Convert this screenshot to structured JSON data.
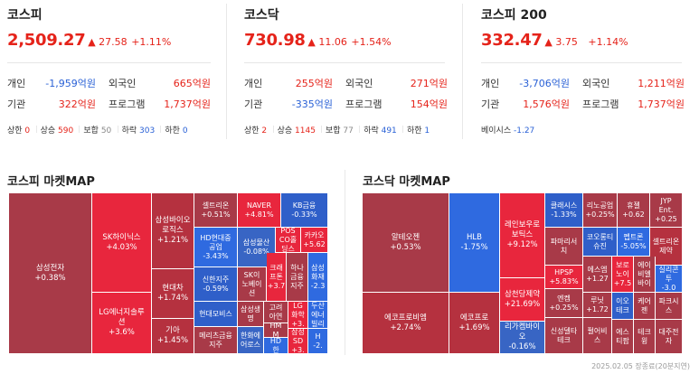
{
  "indices": [
    {
      "name": "코스피",
      "price": "2,509.27",
      "change": "▲ 27.58",
      "rate": "+1.11%",
      "investors": [
        {
          "l": "개인",
          "v": "-1,959억원",
          "c": "blue"
        },
        {
          "l": "외국인",
          "v": "665억원",
          "c": "red"
        },
        {
          "l": "기관",
          "v": "322억원",
          "c": "red"
        },
        {
          "l": "프로그램",
          "v": "1,737억원",
          "c": "red"
        }
      ],
      "stats": [
        [
          "상한",
          "0",
          "red"
        ],
        [
          "상승",
          "590",
          "red"
        ],
        [
          "보합",
          "50",
          "gray"
        ],
        [
          "하락",
          "303",
          "blue"
        ],
        [
          "하한",
          "0",
          "blue"
        ]
      ]
    },
    {
      "name": "코스닥",
      "price": "730.98",
      "change": "▲ 11.06",
      "rate": "+1.54%",
      "investors": [
        {
          "l": "개인",
          "v": "255억원",
          "c": "red"
        },
        {
          "l": "외국인",
          "v": "271억원",
          "c": "red"
        },
        {
          "l": "기관",
          "v": "-335억원",
          "c": "blue"
        },
        {
          "l": "프로그램",
          "v": "154억원",
          "c": "red"
        }
      ],
      "stats": [
        [
          "상한",
          "2",
          "red"
        ],
        [
          "상승",
          "1145",
          "red"
        ],
        [
          "보합",
          "77",
          "gray"
        ],
        [
          "하락",
          "491",
          "blue"
        ],
        [
          "하한",
          "1",
          "blue"
        ]
      ]
    },
    {
      "name": "코스피 200",
      "price": "332.47",
      "change": "▲ 3.75",
      "rate": "+1.14%",
      "investors": [
        {
          "l": "개인",
          "v": "-3,706억원",
          "c": "blue"
        },
        {
          "l": "외국인",
          "v": "1,211억원",
          "c": "red"
        },
        {
          "l": "기관",
          "v": "1,576억원",
          "c": "red"
        },
        {
          "l": "프로그램",
          "v": "1,737억원",
          "c": "red"
        }
      ],
      "basis": {
        "l": "베이시스",
        "v": "-1.27"
      }
    }
  ],
  "kospi_map": {
    "title": "코스피 마켓MAP",
    "cells": [
      {
        "n": "삼성전자",
        "r": "+0.38%",
        "c": "#a83a48",
        "b": 1
      },
      {
        "n": "SK하이닉스",
        "r": "+4.03%",
        "c": "#e8263d",
        "b": 1
      },
      {
        "n": "LG에너지솔루션",
        "r": "+3.6%",
        "c": "#e8263d",
        "b": 1
      },
      {
        "n": "삼성바이오로직스",
        "r": "+1.21%",
        "c": "#b5313f",
        "b": 1
      },
      {
        "n": "현대차",
        "r": "+1.74%",
        "c": "#b5313f",
        "b": 1
      },
      {
        "n": "기아",
        "r": "+1.45%",
        "c": "#b5313f",
        "b": 1
      },
      {
        "n": "셀트리온",
        "r": "+0.51%",
        "c": "#a83a48"
      },
      {
        "n": "NAVER",
        "r": "+4.81%",
        "c": "#e8263d"
      },
      {
        "n": "KB금융",
        "r": "-0.33%",
        "c": "#2f5fc9"
      },
      {
        "n": "HD현대중공업",
        "r": "-3.43%",
        "c": "#2f6ae0"
      },
      {
        "n": "삼성물산",
        "r": "-0.08%",
        "c": "#3865c4"
      },
      {
        "n": "POSCO홀딩스",
        "r": "",
        "c": "#e8263d"
      },
      {
        "n": "카카오",
        "r": "+5.62",
        "c": "#e8263d"
      },
      {
        "n": "신한지주",
        "r": "-0.59%",
        "c": "#2f5fc9"
      },
      {
        "n": "SK이노베이션",
        "r": "",
        "c": "#a83a48"
      },
      {
        "n": "크래프톤",
        "r": "+3.7",
        "c": "#e8263d"
      },
      {
        "n": "하나금융지주",
        "r": "",
        "c": "#a83a48"
      },
      {
        "n": "삼성화재",
        "r": "-2.3",
        "c": "#2f6ae0"
      },
      {
        "n": "현대모비스",
        "r": "",
        "c": "#2f5fc9"
      },
      {
        "n": "삼성생명",
        "r": "",
        "c": "#a83a48"
      },
      {
        "n": "고려아연",
        "r": "",
        "c": "#a83a48"
      },
      {
        "n": "LG화학",
        "r": "+3.",
        "c": "#e8263d"
      },
      {
        "n": "두산에너빌리",
        "r": "",
        "c": "#2f6ae0"
      },
      {
        "n": "한화오션",
        "r": "",
        "c": "#3865c4"
      },
      {
        "n": "HMM",
        "r": "",
        "c": "#a83a48"
      },
      {
        "n": "삼성SD",
        "r": "+3.",
        "c": "#e8263d"
      },
      {
        "n": "메리츠금융지주",
        "r": "",
        "c": "#a83a48"
      },
      {
        "n": "한화에어로스",
        "r": "",
        "c": "#3865c4"
      },
      {
        "n": "HD한",
        "r": "",
        "c": "#2f6ae0"
      },
      {
        "n": "H",
        "r": "-2.",
        "c": "#2f6ae0"
      }
    ]
  },
  "kosdaq_map": {
    "title": "코스닥 마켓MAP",
    "cells": [
      {
        "n": "알테오젠",
        "r": "+0.53%",
        "c": "#a83a48",
        "b": 1
      },
      {
        "n": "에코프로비엠",
        "r": "+2.74%",
        "c": "#b5313f",
        "b": 1
      },
      {
        "n": "HLB",
        "r": "-1.75%",
        "c": "#2f6ae0",
        "b": 1
      },
      {
        "n": "에코프로",
        "r": "+1.69%",
        "c": "#b5313f",
        "b": 1
      },
      {
        "n": "레인보우로보틱스",
        "r": "+9.12%",
        "c": "#e8263d",
        "b": 1
      },
      {
        "n": "삼천당제약",
        "r": "+21.69%",
        "c": "#e8263d",
        "b": 1
      },
      {
        "n": "리가켐바이오",
        "r": "-0.16%",
        "c": "#3865c4",
        "b": 1
      },
      {
        "n": "클래시스",
        "r": "-1.33%",
        "c": "#2f5fc9"
      },
      {
        "n": "리노공업",
        "r": "+0.25%",
        "c": "#a83a48"
      },
      {
        "n": "휴젤",
        "r": "+0.62",
        "c": "#a83a48"
      },
      {
        "n": "JYP Ent.",
        "r": "+0.25",
        "c": "#a83a48"
      },
      {
        "n": "파마리서치",
        "r": "",
        "c": "#a83a48"
      },
      {
        "n": "코오롱티슈진",
        "r": "",
        "c": "#2f5fc9"
      },
      {
        "n": "펩트론",
        "r": "-5.05%",
        "c": "#2f6ae0"
      },
      {
        "n": "셀트리온제약",
        "r": "",
        "c": "#b5313f"
      },
      {
        "n": "HPSP",
        "r": "+5.83%",
        "c": "#e8263d"
      },
      {
        "n": "에스엠",
        "r": "+1.27",
        "c": "#a83a48"
      },
      {
        "n": "보로노이",
        "r": "+7.5",
        "c": "#e8263d"
      },
      {
        "n": "에이비엘바이",
        "r": "",
        "c": "#a83a48"
      },
      {
        "n": "실리콘투",
        "r": "-3.0",
        "c": "#2f6ae0"
      },
      {
        "n": "엔켐",
        "r": "+0.25%",
        "c": "#a83a48"
      },
      {
        "n": "루닛",
        "r": "+1.72",
        "c": "#a83a48"
      },
      {
        "n": "이오테크",
        "r": "",
        "c": "#2f5fc9"
      },
      {
        "n": "케어젠",
        "r": "",
        "c": "#a83a48"
      },
      {
        "n": "파크시스",
        "r": "",
        "c": "#a83a48"
      },
      {
        "n": "신성델타테크",
        "r": "",
        "c": "#a83a48"
      },
      {
        "n": "펄어비스",
        "r": "",
        "c": "#a83a48"
      },
      {
        "n": "에스티팜",
        "r": "",
        "c": "#a83a48"
      },
      {
        "n": "테크윙",
        "r": "",
        "c": "#a83a48"
      },
      {
        "n": "대주전자",
        "r": "",
        "c": "#a83a48"
      }
    ]
  },
  "footer": "2025.02.05 장종료(20분지연)"
}
